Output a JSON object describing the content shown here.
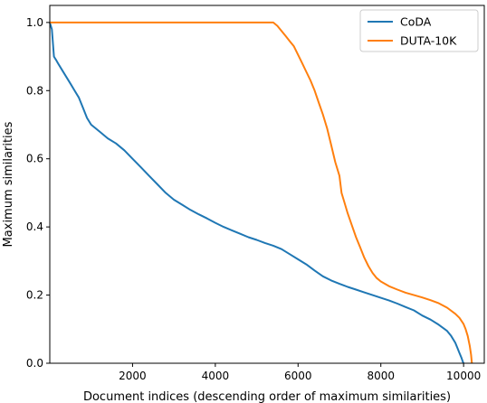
{
  "chart_data": {
    "type": "line",
    "xlabel": "Document indices (descending order of maximum similarities)",
    "ylabel": "Maximum similarities",
    "xlim": [
      0,
      10500
    ],
    "ylim": [
      0,
      1.05
    ],
    "x_ticks": [
      2000,
      4000,
      6000,
      8000,
      10000
    ],
    "x_tick_labels": [
      "2000",
      "4000",
      "6000",
      "8000",
      "10000"
    ],
    "y_ticks": [
      0.0,
      0.2,
      0.4,
      0.6,
      0.8,
      1.0
    ],
    "y_tick_labels": [
      "0.0",
      "0.2",
      "0.4",
      "0.6",
      "0.8",
      "1.0"
    ],
    "grid": false,
    "legend_position": "top-right",
    "series": [
      {
        "name": "CoDA",
        "color": "#1f77b4",
        "x": [
          0,
          50,
          100,
          150,
          200,
          300,
          400,
          500,
          600,
          700,
          800,
          900,
          1000,
          1200,
          1400,
          1600,
          1800,
          2000,
          2200,
          2400,
          2600,
          2800,
          3000,
          3200,
          3400,
          3600,
          3800,
          4000,
          4200,
          4400,
          4600,
          4800,
          5000,
          5200,
          5400,
          5600,
          5800,
          6000,
          6200,
          6400,
          6600,
          6800,
          7000,
          7200,
          7400,
          7600,
          7800,
          8000,
          8200,
          8400,
          8600,
          8800,
          9000,
          9200,
          9400,
          9600,
          9700,
          9800,
          9850,
          9900,
          9950,
          9980,
          10000
        ],
        "y": [
          1.0,
          0.98,
          0.9,
          0.89,
          0.88,
          0.86,
          0.84,
          0.82,
          0.8,
          0.78,
          0.75,
          0.72,
          0.7,
          0.68,
          0.66,
          0.645,
          0.625,
          0.6,
          0.575,
          0.55,
          0.525,
          0.5,
          0.48,
          0.465,
          0.45,
          0.437,
          0.425,
          0.412,
          0.4,
          0.39,
          0.38,
          0.37,
          0.362,
          0.353,
          0.345,
          0.335,
          0.32,
          0.305,
          0.29,
          0.272,
          0.255,
          0.243,
          0.233,
          0.224,
          0.216,
          0.208,
          0.2,
          0.192,
          0.184,
          0.175,
          0.165,
          0.155,
          0.14,
          0.128,
          0.113,
          0.095,
          0.08,
          0.06,
          0.045,
          0.03,
          0.015,
          0.005,
          0.0
        ]
      },
      {
        "name": "DUTA-10K",
        "color": "#ff7f0e",
        "x": [
          0,
          1000,
          2000,
          3000,
          4000,
          5000,
          5400,
          5500,
          5600,
          5700,
          5800,
          5900,
          6000,
          6100,
          6200,
          6300,
          6400,
          6500,
          6600,
          6700,
          6800,
          6900,
          7000,
          7050,
          7100,
          7200,
          7300,
          7400,
          7500,
          7600,
          7700,
          7800,
          7900,
          8000,
          8200,
          8400,
          8600,
          8800,
          9000,
          9200,
          9400,
          9600,
          9800,
          9900,
          10000,
          10050,
          10100,
          10150,
          10180,
          10200
        ],
        "y": [
          1.0,
          1.0,
          1.0,
          1.0,
          1.0,
          1.0,
          1.0,
          0.99,
          0.975,
          0.96,
          0.945,
          0.93,
          0.905,
          0.88,
          0.855,
          0.83,
          0.8,
          0.765,
          0.73,
          0.69,
          0.64,
          0.59,
          0.55,
          0.5,
          0.48,
          0.44,
          0.405,
          0.37,
          0.34,
          0.31,
          0.285,
          0.265,
          0.25,
          0.24,
          0.226,
          0.216,
          0.207,
          0.2,
          0.193,
          0.185,
          0.176,
          0.163,
          0.145,
          0.133,
          0.115,
          0.1,
          0.08,
          0.05,
          0.025,
          0.0
        ]
      }
    ]
  }
}
